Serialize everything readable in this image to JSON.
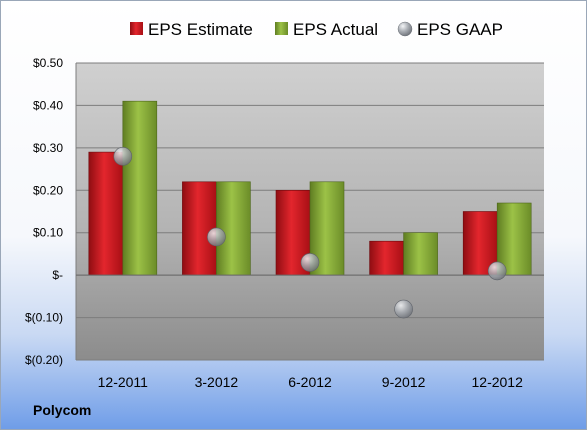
{
  "brand": "Polycom",
  "colors": {
    "estimate": "#c8161d",
    "actual": "#86a93a",
    "gaap": "#a6aab0"
  },
  "chart_data": {
    "type": "bar",
    "categories": [
      "12-2011",
      "3-2012",
      "6-2012",
      "9-2012",
      "12-2012"
    ],
    "series": [
      {
        "name": "EPS Estimate",
        "kind": "bar",
        "values": [
          0.29,
          0.22,
          0.2,
          0.08,
          0.15
        ]
      },
      {
        "name": "EPS Actual",
        "kind": "bar",
        "values": [
          0.41,
          0.22,
          0.22,
          0.1,
          0.17
        ]
      },
      {
        "name": "EPS GAAP",
        "kind": "marker",
        "values": [
          0.28,
          0.09,
          0.03,
          -0.08,
          0.01
        ]
      }
    ],
    "yticks": [
      0.5,
      0.4,
      0.3,
      0.2,
      0.1,
      0,
      -0.1,
      -0.2
    ],
    "ytick_labels": [
      "$0.50",
      "$0.40",
      "$0.30",
      "$0.20",
      "$0.10",
      "$-",
      "$(0.10)",
      "$(0.20)"
    ],
    "ylim": [
      -0.2,
      0.5
    ],
    "grid": true,
    "legend_position": "top"
  }
}
